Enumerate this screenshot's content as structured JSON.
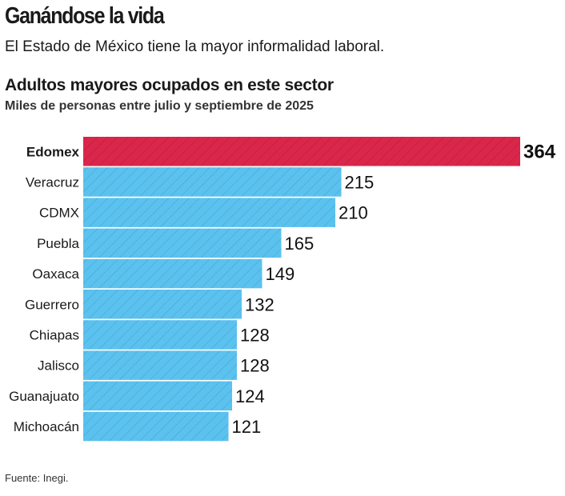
{
  "header": {
    "title": "Ganándose la vida",
    "subtitle": "El Estado de México tiene la mayor informalidad laboral."
  },
  "footer": {
    "source": "Fuente: Inegi."
  },
  "chart_data": {
    "type": "bar",
    "orientation": "horizontal",
    "title": "Adultos mayores ocupados en este sector",
    "subtitle": "Miles de personas entre julio y septiembre de 2025",
    "categories": [
      "Edomex",
      "Veracruz",
      "CDMX",
      "Puebla",
      "Oaxaca",
      "Guerrero",
      "Chiapas",
      "Jalisco",
      "Guanajuato",
      "Michoacán"
    ],
    "values": [
      364,
      215,
      210,
      165,
      149,
      132,
      128,
      128,
      124,
      121
    ],
    "highlight": "Edomex",
    "colors": {
      "highlight": "#d9264a",
      "default": "#5bc2ef"
    },
    "grid": false
  }
}
